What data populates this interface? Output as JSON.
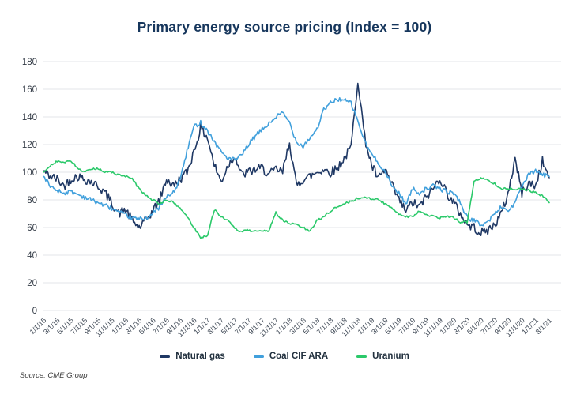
{
  "footer": {
    "source": "Source: CME Group"
  },
  "chart_data": {
    "type": "line",
    "title": "Primary energy source pricing (Index = 100)",
    "xlabel": "",
    "ylabel": "",
    "ylim": [
      0,
      180
    ],
    "yticks": [
      0,
      20,
      40,
      60,
      80,
      100,
      120,
      140,
      160,
      180
    ],
    "grid": true,
    "legend_position": "bottom",
    "x_labels": [
      "1/1/15",
      "3/1/15",
      "5/1/15",
      "7/1/15",
      "9/1/15",
      "11/1/15",
      "1/1/16",
      "3/1/16",
      "5/1/16",
      "7/1/16",
      "9/1/16",
      "11/1/16",
      "1/1/17",
      "3/1/17",
      "5/1/17",
      "7/1/17",
      "9/1/17",
      "11/1/17",
      "1/1/18",
      "3/1/18",
      "5/1/18",
      "7/1/18",
      "9/1/18",
      "11/1/18",
      "1/1/19",
      "3/1/19",
      "5/1/19",
      "7/1/19",
      "9/1/19",
      "11/1/19",
      "1/1/20",
      "3/1/20",
      "5/1/20",
      "7/1/20",
      "9/1/20",
      "11/1/20",
      "1/1/21",
      "3/1/21"
    ],
    "monthly_from": "1/2015",
    "monthly_to": "3/2021",
    "series": [
      {
        "name": "Natural gas",
        "color": "#1f3864",
        "volatility": 3.4,
        "monthly_values": [
          101,
          97,
          95,
          90,
          95,
          97,
          95,
          93,
          90,
          85,
          78,
          70,
          73,
          65,
          60,
          65,
          72,
          80,
          95,
          90,
          95,
          100,
          115,
          132,
          125,
          105,
          93,
          105,
          112,
          98,
          100,
          102,
          103,
          98,
          102,
          100,
          122,
          90,
          95,
          97,
          100,
          102,
          100,
          103,
          110,
          118,
          167,
          125,
          105,
          95,
          102,
          90,
          80,
          72,
          78,
          75,
          82,
          88,
          96,
          85,
          78,
          70,
          62,
          60,
          56,
          58,
          62,
          70,
          85,
          110,
          85,
          92,
          90,
          108,
          96
        ]
      },
      {
        "name": "Coal CIF ARA",
        "color": "#41a0dc",
        "volatility": 1.6,
        "monthly_values": [
          97,
          90,
          87,
          85,
          86,
          84,
          82,
          80,
          78,
          76,
          74,
          71,
          69,
          67,
          66,
          67,
          70,
          75,
          82,
          85,
          95,
          115,
          133,
          136,
          130,
          122,
          115,
          110,
          109,
          112,
          120,
          126,
          131,
          135,
          140,
          143,
          136,
          122,
          119,
          125,
          131,
          145,
          150,
          153,
          152,
          150,
          137,
          122,
          113,
          107,
          100,
          90,
          85,
          77,
          88,
          85,
          88,
          90,
          88,
          86,
          85,
          78,
          67,
          65,
          62,
          64,
          70,
          75,
          72,
          78,
          90,
          98,
          101,
          98,
          97
        ]
      },
      {
        "name": "Uranium",
        "color": "#2bc96a",
        "volatility": 0.8,
        "monthly_values": [
          100,
          105,
          108,
          107,
          108,
          103,
          100,
          102,
          103,
          100,
          100,
          98,
          97,
          95,
          88,
          83,
          80,
          77,
          80,
          78,
          74,
          68,
          60,
          53,
          54,
          73,
          68,
          65,
          59,
          57,
          58,
          57,
          57,
          58,
          71,
          65,
          63,
          62,
          60,
          57,
          65,
          68,
          72,
          75,
          77,
          79,
          81,
          82,
          81,
          80,
          77,
          74,
          70,
          68,
          68,
          72,
          69,
          68,
          67,
          68,
          67,
          64,
          64,
          93,
          96,
          94,
          92,
          88,
          88,
          88,
          88,
          87,
          85,
          83,
          78
        ]
      }
    ]
  }
}
